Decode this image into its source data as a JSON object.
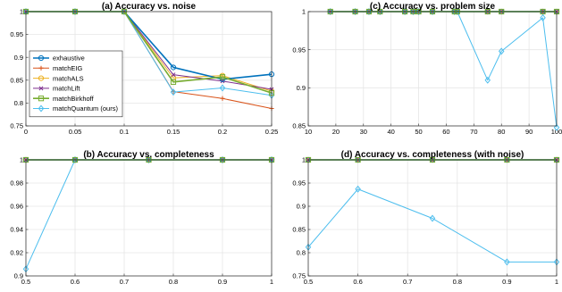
{
  "series_styles": [
    {
      "name": "exhaustive",
      "color": "#0072BD",
      "marker": "circle",
      "width": 1.6
    },
    {
      "name": "matchEIG",
      "color": "#D95319",
      "marker": "plus",
      "width": 1.0
    },
    {
      "name": "matchALS",
      "color": "#EDB120",
      "marker": "circle",
      "width": 1.0
    },
    {
      "name": "matchLift",
      "color": "#7E2F8E",
      "marker": "x",
      "width": 1.0
    },
    {
      "name": "matchBirkhoff",
      "color": "#77AC30",
      "marker": "square",
      "width": 1.6
    },
    {
      "name": "matchQuantum (ours)",
      "color": "#4DBEEE",
      "marker": "diamond",
      "width": 1.0
    }
  ],
  "chart_data": [
    {
      "type": "line",
      "title": "(a) Accuracy vs. noise",
      "xlim": [
        0,
        0.25
      ],
      "ylim": [
        0.75,
        1
      ],
      "xticks": [
        "0",
        "0.05",
        "0.1",
        "0.15",
        "0.2",
        "0.25"
      ],
      "yticks": [
        "0.75",
        "0.8",
        "0.85",
        "0.9",
        "0.95",
        "1"
      ],
      "grid": true,
      "legend": "left",
      "x": [
        0,
        0.05,
        0.1,
        0.15,
        0.2,
        0.25
      ],
      "series": [
        {
          "name": "exhaustive",
          "values": [
            1,
            1,
            1,
            0.878,
            0.852,
            0.863
          ]
        },
        {
          "name": "matchEIG",
          "values": [
            1,
            1,
            1,
            0.825,
            0.81,
            0.788
          ]
        },
        {
          "name": "matchALS",
          "values": [
            1,
            1,
            1,
            0.855,
            0.86,
            0.826
          ]
        },
        {
          "name": "matchLift",
          "values": [
            1,
            1,
            1,
            0.862,
            0.848,
            0.83
          ]
        },
        {
          "name": "matchBirkhoff",
          "values": [
            1,
            1,
            1,
            0.846,
            0.857,
            0.822
          ]
        },
        {
          "name": "matchQuantum (ours)",
          "values": [
            1,
            1,
            1,
            0.824,
            0.833,
            0.817
          ]
        }
      ]
    },
    {
      "type": "line",
      "title": "(c) Accuracy vs. problem size",
      "xlim": [
        10,
        100
      ],
      "ylim": [
        0.85,
        1
      ],
      "xticks": [
        "10",
        "20",
        "30",
        "40",
        "50",
        "60",
        "70",
        "80",
        "90",
        "100"
      ],
      "yticks": [
        "0.85",
        "0.9",
        "0.95",
        "1"
      ],
      "grid": true,
      "legend": "",
      "x": [
        18,
        27,
        32,
        36,
        45,
        48,
        50,
        55,
        63,
        64,
        75,
        80,
        95,
        100
      ],
      "series": [
        {
          "name": "exhaustive",
          "values": [
            1,
            1,
            1,
            1,
            1,
            1,
            1,
            1,
            1,
            1,
            1,
            1,
            1,
            1
          ]
        },
        {
          "name": "matchEIG",
          "values": [
            1,
            1,
            1,
            1,
            1,
            1,
            1,
            1,
            1,
            1,
            1,
            1,
            1,
            1
          ]
        },
        {
          "name": "matchALS",
          "values": [
            1,
            1,
            1,
            1,
            1,
            1,
            1,
            1,
            1,
            1,
            1,
            1,
            1,
            1
          ]
        },
        {
          "name": "matchLift",
          "values": [
            1,
            1,
            1,
            1,
            1,
            1,
            1,
            1,
            1,
            1,
            1,
            1,
            1,
            1
          ]
        },
        {
          "name": "matchBirkhoff",
          "values": [
            1,
            1,
            1,
            1,
            1,
            1,
            1,
            1,
            1,
            1,
            1,
            1,
            1,
            1
          ]
        },
        {
          "name": "matchQuantum (ours)",
          "values": [
            1,
            1,
            1,
            1,
            1,
            1,
            1,
            1,
            1,
            1,
            0.91,
            0.948,
            0.992,
            0.848
          ]
        }
      ]
    },
    {
      "type": "line",
      "title": "(b) Accuracy vs. completeness",
      "xlim": [
        0.5,
        1
      ],
      "ylim": [
        0.9,
        1
      ],
      "xticks": [
        "0.5",
        "0.6",
        "0.7",
        "0.8",
        "0.9",
        "1"
      ],
      "yticks": [
        "0.9",
        "0.92",
        "0.94",
        "0.96",
        "0.98",
        "1"
      ],
      "grid": true,
      "legend": "",
      "x": [
        0.5,
        0.6,
        0.75,
        0.9,
        1
      ],
      "series": [
        {
          "name": "exhaustive",
          "values": [
            1,
            1,
            1,
            1,
            1
          ]
        },
        {
          "name": "matchEIG",
          "values": [
            1,
            1,
            1,
            1,
            1
          ]
        },
        {
          "name": "matchALS",
          "values": [
            1,
            1,
            1,
            1,
            1
          ]
        },
        {
          "name": "matchLift",
          "values": [
            1,
            1,
            1,
            1,
            1
          ]
        },
        {
          "name": "matchBirkhoff",
          "values": [
            1,
            1,
            1,
            1,
            1
          ]
        },
        {
          "name": "matchQuantum (ours)",
          "values": [
            0.906,
            1,
            1,
            1,
            1
          ]
        }
      ]
    },
    {
      "type": "line",
      "title": "(d) Accuracy vs. completeness (with noise)",
      "xlim": [
        0.5,
        1
      ],
      "ylim": [
        0.75,
        1
      ],
      "xticks": [
        "0.5",
        "0.6",
        "0.7",
        "0.8",
        "0.9",
        "1"
      ],
      "yticks": [
        "0.75",
        "0.8",
        "0.85",
        "0.9",
        "0.95",
        "1"
      ],
      "grid": true,
      "legend": "",
      "x": [
        0.5,
        0.6,
        0.75,
        0.9,
        1
      ],
      "series": [
        {
          "name": "exhaustive",
          "values": [
            1,
            1,
            1,
            1,
            1
          ]
        },
        {
          "name": "matchEIG",
          "values": [
            1,
            1,
            1,
            1,
            1
          ]
        },
        {
          "name": "matchALS",
          "values": [
            1,
            1,
            1,
            1,
            1
          ]
        },
        {
          "name": "matchLift",
          "values": [
            1,
            1,
            1,
            1,
            1
          ]
        },
        {
          "name": "matchBirkhoff",
          "values": [
            1,
            1,
            1,
            1,
            1
          ]
        },
        {
          "name": "matchQuantum (ours)",
          "values": [
            0.812,
            0.937,
            0.874,
            0.78,
            0.78
          ]
        }
      ]
    }
  ]
}
